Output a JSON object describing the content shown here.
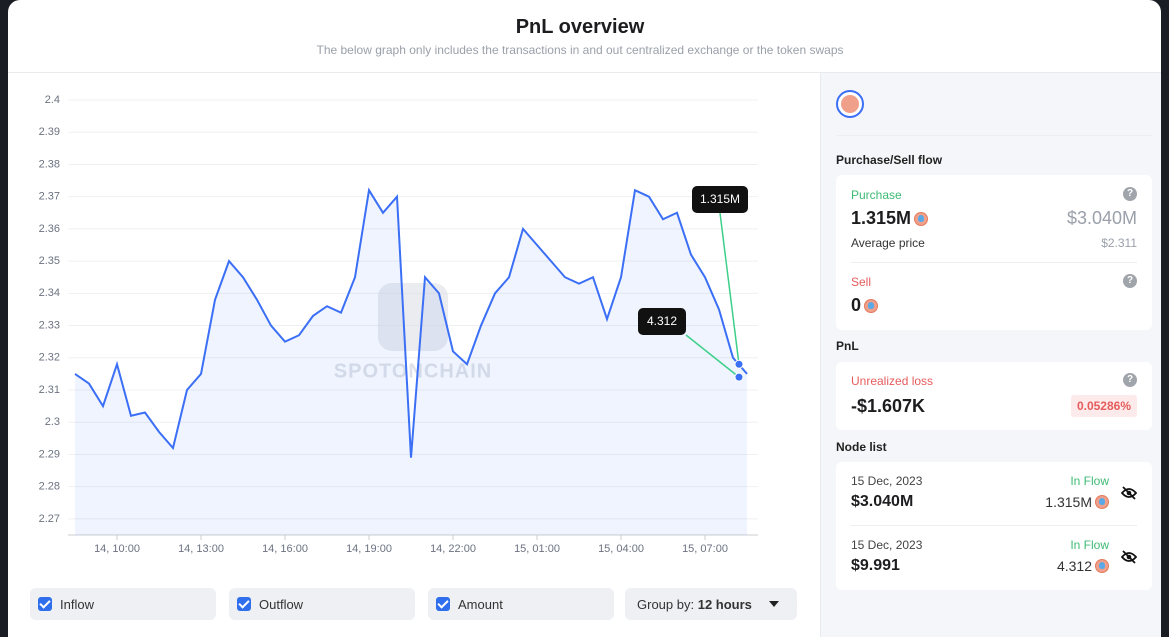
{
  "header": {
    "title": "PnL overview",
    "subtitle": "The below graph only includes the transactions in and out centralized exchange or the token swaps"
  },
  "chart": {
    "type": "line",
    "color": "#3b6ff5",
    "x": [
      "14, 08:30",
      "14, 09:00",
      "14, 09:30",
      "14, 10:00",
      "14, 10:30",
      "14, 11:00",
      "14, 11:30",
      "14, 12:00",
      "14, 12:30",
      "14, 13:00",
      "14, 13:30",
      "14, 14:00",
      "14, 14:30",
      "14, 15:00",
      "14, 15:30",
      "14, 16:00",
      "14, 16:30",
      "14, 17:00",
      "14, 17:30",
      "14, 18:00",
      "14, 18:30",
      "14, 19:00",
      "14, 19:30",
      "14, 20:00",
      "14, 20:30",
      "14, 21:00",
      "14, 21:30",
      "14, 22:00",
      "14, 22:30",
      "14, 23:00",
      "14, 23:30",
      "15, 00:00",
      "15, 00:30",
      "15, 01:00",
      "15, 01:30",
      "15, 02:00",
      "15, 02:30",
      "15, 03:00",
      "15, 03:30",
      "15, 04:00",
      "15, 04:30",
      "15, 05:00",
      "15, 05:30",
      "15, 06:00",
      "15, 06:30",
      "15, 07:00",
      "15, 07:30",
      "15, 08:00",
      "15, 08:30"
    ],
    "values": [
      2.315,
      2.312,
      2.305,
      2.318,
      2.302,
      2.303,
      2.297,
      2.292,
      2.31,
      2.315,
      2.338,
      2.35,
      2.345,
      2.338,
      2.33,
      2.325,
      2.327,
      2.333,
      2.336,
      2.334,
      2.345,
      2.372,
      2.365,
      2.37,
      2.289,
      2.345,
      2.34,
      2.322,
      2.318,
      2.33,
      2.34,
      2.345,
      2.36,
      2.355,
      2.35,
      2.345,
      2.343,
      2.345,
      2.332,
      2.345,
      2.372,
      2.37,
      2.363,
      2.365,
      2.352,
      2.345,
      2.335,
      2.32,
      2.315
    ],
    "ylim": [
      2.265,
      2.4
    ],
    "yticks": [
      2.27,
      2.28,
      2.29,
      2.3,
      2.31,
      2.32,
      2.33,
      2.34,
      2.35,
      2.36,
      2.37,
      2.38,
      2.39,
      2.4
    ],
    "xticks": [
      "14, 10:00",
      "14, 13:00",
      "14, 16:00",
      "14, 19:00",
      "14, 22:00",
      "15, 01:00",
      "15, 04:00",
      "15, 07:00"
    ],
    "grid": true,
    "watermark": "SPOTONCHAIN",
    "annotations": [
      {
        "label": "1.315M",
        "value": 2.318
      },
      {
        "label": "4.312",
        "value": 2.314
      }
    ]
  },
  "filters": [
    {
      "label": "Inflow",
      "checked": true
    },
    {
      "label": "Outflow",
      "checked": true
    },
    {
      "label": "Amount",
      "checked": true
    }
  ],
  "group_by": {
    "label": "Group by:",
    "value": "12 hours"
  },
  "side": {
    "flow_title": "Purchase/Sell flow",
    "purchase": {
      "label": "Purchase",
      "amount": "1.315M",
      "usd": "$3.040M",
      "avg_label": "Average price",
      "avg": "$2.311"
    },
    "sell": {
      "label": "Sell",
      "amount": "0"
    },
    "pnl_title": "PnL",
    "pnl": {
      "label": "Unrealized loss",
      "value": "-$1.607K",
      "percent": "0.05286%"
    },
    "nodes_title": "Node list",
    "nodes": [
      {
        "date": "15 Dec, 2023",
        "flow": "In Flow",
        "usd": "$3.040M",
        "amount": "1.315M"
      },
      {
        "date": "15 Dec, 2023",
        "flow": "In Flow",
        "usd": "$9.991",
        "amount": "4.312"
      }
    ]
  }
}
